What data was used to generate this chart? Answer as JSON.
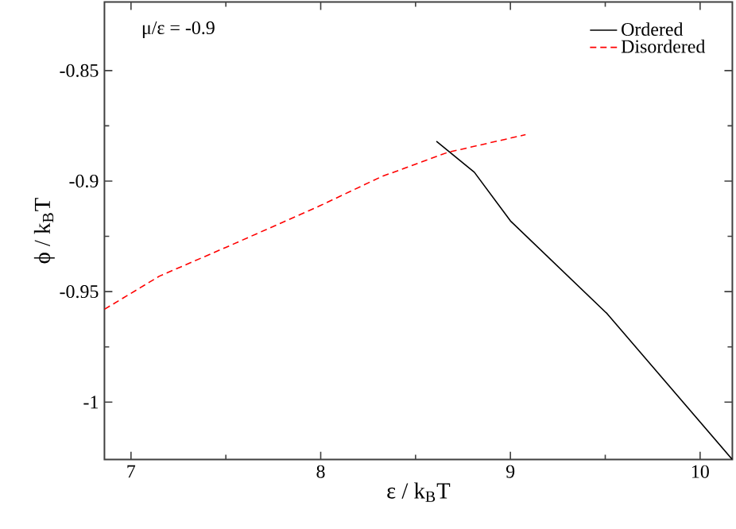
{
  "chart_data": {
    "type": "line",
    "xlabel": "ε / k$_{B}$T",
    "ylabel": "ϕ / k$_{B}$T",
    "annotations": [
      "μ/ε = -0.9"
    ],
    "xlim": [
      6.86,
      10.17
    ],
    "ylim": [
      -1.026,
      -0.819
    ],
    "xticks": [
      7,
      8,
      9,
      10
    ],
    "yticks": [
      -0.85,
      -0.9,
      -0.95,
      -1
    ],
    "grid": false,
    "legend": "top right",
    "marker": "none",
    "series": [
      {
        "name": "Ordered",
        "color": "#000000",
        "line_style": "solid",
        "x": [
          8.61,
          8.81,
          9.0,
          9.51,
          10.17
        ],
        "values": [
          -0.882,
          -0.896,
          -0.918,
          -0.96,
          -1.026
        ]
      },
      {
        "name": "Disordered",
        "color": "#ff0000",
        "line_style": "dashed",
        "x": [
          6.86,
          7.15,
          7.5,
          8.0,
          8.32,
          8.67,
          9.08
        ],
        "values": [
          -0.958,
          -0.943,
          -0.93,
          -0.911,
          -0.898,
          -0.887,
          -0.879
        ]
      }
    ]
  }
}
